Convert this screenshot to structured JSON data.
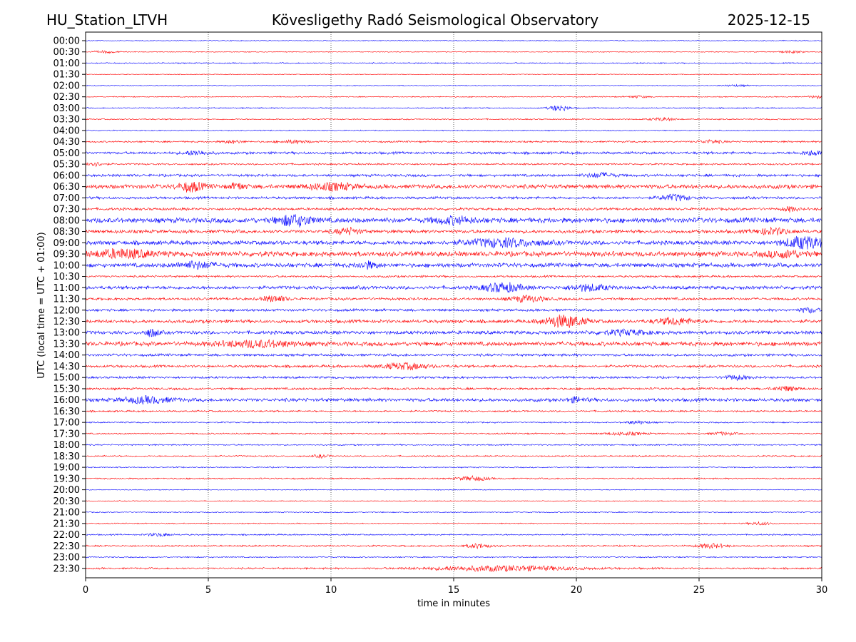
{
  "header": {
    "station": "HU_Station_LTVH",
    "observatory": "Kövesligethy Radó Seismological Observatory",
    "date": "2025-12-15"
  },
  "chart_data": {
    "type": "line",
    "title": "Kövesligethy Radó Seismological Observatory",
    "xlabel": "time in minutes",
    "ylabel": "UTC (local time = UTC + 01:00)",
    "xlim": [
      0,
      30
    ],
    "xticks": [
      "0",
      "5",
      "10",
      "15",
      "20",
      "25",
      "30"
    ],
    "grid": "vertical dotted at 5-minute intervals",
    "colors": [
      "#0000ff",
      "#ff0000"
    ],
    "rows": [
      {
        "label": "00:00",
        "noise": 0.5,
        "bursts": []
      },
      {
        "label": "00:30",
        "noise": 0.5,
        "bursts": [
          [
            0.8,
            0.5,
            1.5
          ],
          [
            28.8,
            0.5,
            1.5
          ]
        ]
      },
      {
        "label": "01:00",
        "noise": 0.7,
        "bursts": []
      },
      {
        "label": "01:30",
        "noise": 0.4,
        "bursts": []
      },
      {
        "label": "02:00",
        "noise": 0.5,
        "bursts": [
          [
            26.5,
            0.5,
            1.2
          ]
        ]
      },
      {
        "label": "02:30",
        "noise": 0.6,
        "bursts": [
          [
            22.5,
            0.4,
            1.5
          ],
          [
            29.8,
            0.3,
            2
          ]
        ]
      },
      {
        "label": "03:00",
        "noise": 0.7,
        "bursts": [
          [
            19.3,
            0.4,
            4
          ]
        ]
      },
      {
        "label": "03:30",
        "noise": 0.7,
        "bursts": [
          [
            23.5,
            0.5,
            2
          ]
        ]
      },
      {
        "label": "04:00",
        "noise": 0.6,
        "bursts": []
      },
      {
        "label": "04:30",
        "noise": 1.0,
        "bursts": [
          [
            6,
            0.4,
            2
          ],
          [
            8.5,
            0.6,
            2
          ],
          [
            25.5,
            0.5,
            2
          ]
        ]
      },
      {
        "label": "05:00",
        "noise": 1.5,
        "bursts": [
          [
            4.5,
            0.5,
            3
          ],
          [
            29.6,
            0.4,
            3
          ]
        ]
      },
      {
        "label": "05:30",
        "noise": 1.0,
        "bursts": [
          [
            0.3,
            0.4,
            3
          ]
        ]
      },
      {
        "label": "06:00",
        "noise": 1.5,
        "bursts": [
          [
            21,
            0.6,
            3
          ]
        ]
      },
      {
        "label": "06:30",
        "noise": 2.5,
        "bursts": [
          [
            4.3,
            0.5,
            6
          ],
          [
            10,
            1,
            4
          ],
          [
            6.2,
            0.3,
            4
          ]
        ]
      },
      {
        "label": "07:00",
        "noise": 1.5,
        "bursts": [
          [
            24,
            0.6,
            4
          ]
        ]
      },
      {
        "label": "07:30",
        "noise": 1.5,
        "bursts": [
          [
            28.7,
            0.3,
            3
          ]
        ]
      },
      {
        "label": "08:00",
        "noise": 3.0,
        "bursts": [
          [
            8.5,
            0.7,
            7
          ],
          [
            15,
            0.8,
            4
          ]
        ]
      },
      {
        "label": "08:30",
        "noise": 2.0,
        "bursts": [
          [
            10.7,
            0.5,
            4
          ],
          [
            28,
            0.7,
            4
          ]
        ]
      },
      {
        "label": "09:00",
        "noise": 2.5,
        "bursts": [
          [
            17,
            1.5,
            5
          ],
          [
            29.3,
            0.8,
            8
          ]
        ]
      },
      {
        "label": "09:30",
        "noise": 3.0,
        "bursts": [
          [
            1.5,
            1.2,
            5
          ],
          [
            28.5,
            0.8,
            4
          ]
        ]
      },
      {
        "label": "10:00",
        "noise": 2.5,
        "bursts": [
          [
            4.5,
            0.8,
            4
          ],
          [
            11.5,
            0.4,
            4
          ]
        ]
      },
      {
        "label": "10:30",
        "noise": 1.2,
        "bursts": []
      },
      {
        "label": "11:00",
        "noise": 2.0,
        "bursts": [
          [
            17,
            0.8,
            6
          ],
          [
            20.5,
            0.8,
            4
          ]
        ]
      },
      {
        "label": "11:30",
        "noise": 1.5,
        "bursts": [
          [
            7.7,
            0.5,
            4
          ],
          [
            18,
            0.7,
            4
          ]
        ]
      },
      {
        "label": "12:00",
        "noise": 1.5,
        "bursts": [
          [
            29.5,
            0.4,
            3
          ]
        ]
      },
      {
        "label": "12:30",
        "noise": 2.0,
        "bursts": [
          [
            19.5,
            0.8,
            8
          ],
          [
            24,
            0.8,
            4
          ]
        ]
      },
      {
        "label": "13:00",
        "noise": 2.0,
        "bursts": [
          [
            2.7,
            0.3,
            5
          ],
          [
            22,
            1,
            3
          ]
        ]
      },
      {
        "label": "13:30",
        "noise": 2.5,
        "bursts": [
          [
            7,
            1.5,
            4
          ]
        ]
      },
      {
        "label": "14:00",
        "noise": 1.5,
        "bursts": []
      },
      {
        "label": "14:30",
        "noise": 1.5,
        "bursts": [
          [
            13,
            1,
            4
          ]
        ]
      },
      {
        "label": "15:00",
        "noise": 1.3,
        "bursts": [
          [
            26.5,
            0.5,
            3
          ]
        ]
      },
      {
        "label": "15:30",
        "noise": 1.3,
        "bursts": [
          [
            28.5,
            0.5,
            3
          ]
        ]
      },
      {
        "label": "16:00",
        "noise": 2.0,
        "bursts": [
          [
            2.5,
            1,
            4
          ],
          [
            20,
            0.4,
            3
          ]
        ]
      },
      {
        "label": "16:30",
        "noise": 1.0,
        "bursts": []
      },
      {
        "label": "17:00",
        "noise": 0.8,
        "bursts": [
          [
            22.5,
            0.5,
            2
          ]
        ]
      },
      {
        "label": "17:30",
        "noise": 0.8,
        "bursts": [
          [
            22,
            0.8,
            2
          ],
          [
            26,
            0.5,
            2
          ]
        ]
      },
      {
        "label": "18:00",
        "noise": 0.8,
        "bursts": []
      },
      {
        "label": "18:30",
        "noise": 0.8,
        "bursts": [
          [
            9.6,
            0.3,
            2
          ]
        ]
      },
      {
        "label": "19:00",
        "noise": 0.7,
        "bursts": []
      },
      {
        "label": "19:30",
        "noise": 0.8,
        "bursts": [
          [
            15.8,
            0.6,
            3
          ]
        ]
      },
      {
        "label": "20:00",
        "noise": 0.5,
        "bursts": []
      },
      {
        "label": "20:30",
        "noise": 0.5,
        "bursts": []
      },
      {
        "label": "21:00",
        "noise": 0.6,
        "bursts": []
      },
      {
        "label": "21:30",
        "noise": 0.6,
        "bursts": [
          [
            27.5,
            0.5,
            2
          ]
        ]
      },
      {
        "label": "22:00",
        "noise": 0.8,
        "bursts": [
          [
            3,
            0.5,
            2
          ]
        ]
      },
      {
        "label": "22:30",
        "noise": 0.9,
        "bursts": [
          [
            16,
            0.5,
            3
          ],
          [
            25.5,
            0.6,
            3
          ]
        ]
      },
      {
        "label": "23:00",
        "noise": 0.7,
        "bursts": []
      },
      {
        "label": "23:30",
        "noise": 1.0,
        "bursts": [
          [
            17,
            3,
            3.5
          ]
        ]
      }
    ]
  }
}
